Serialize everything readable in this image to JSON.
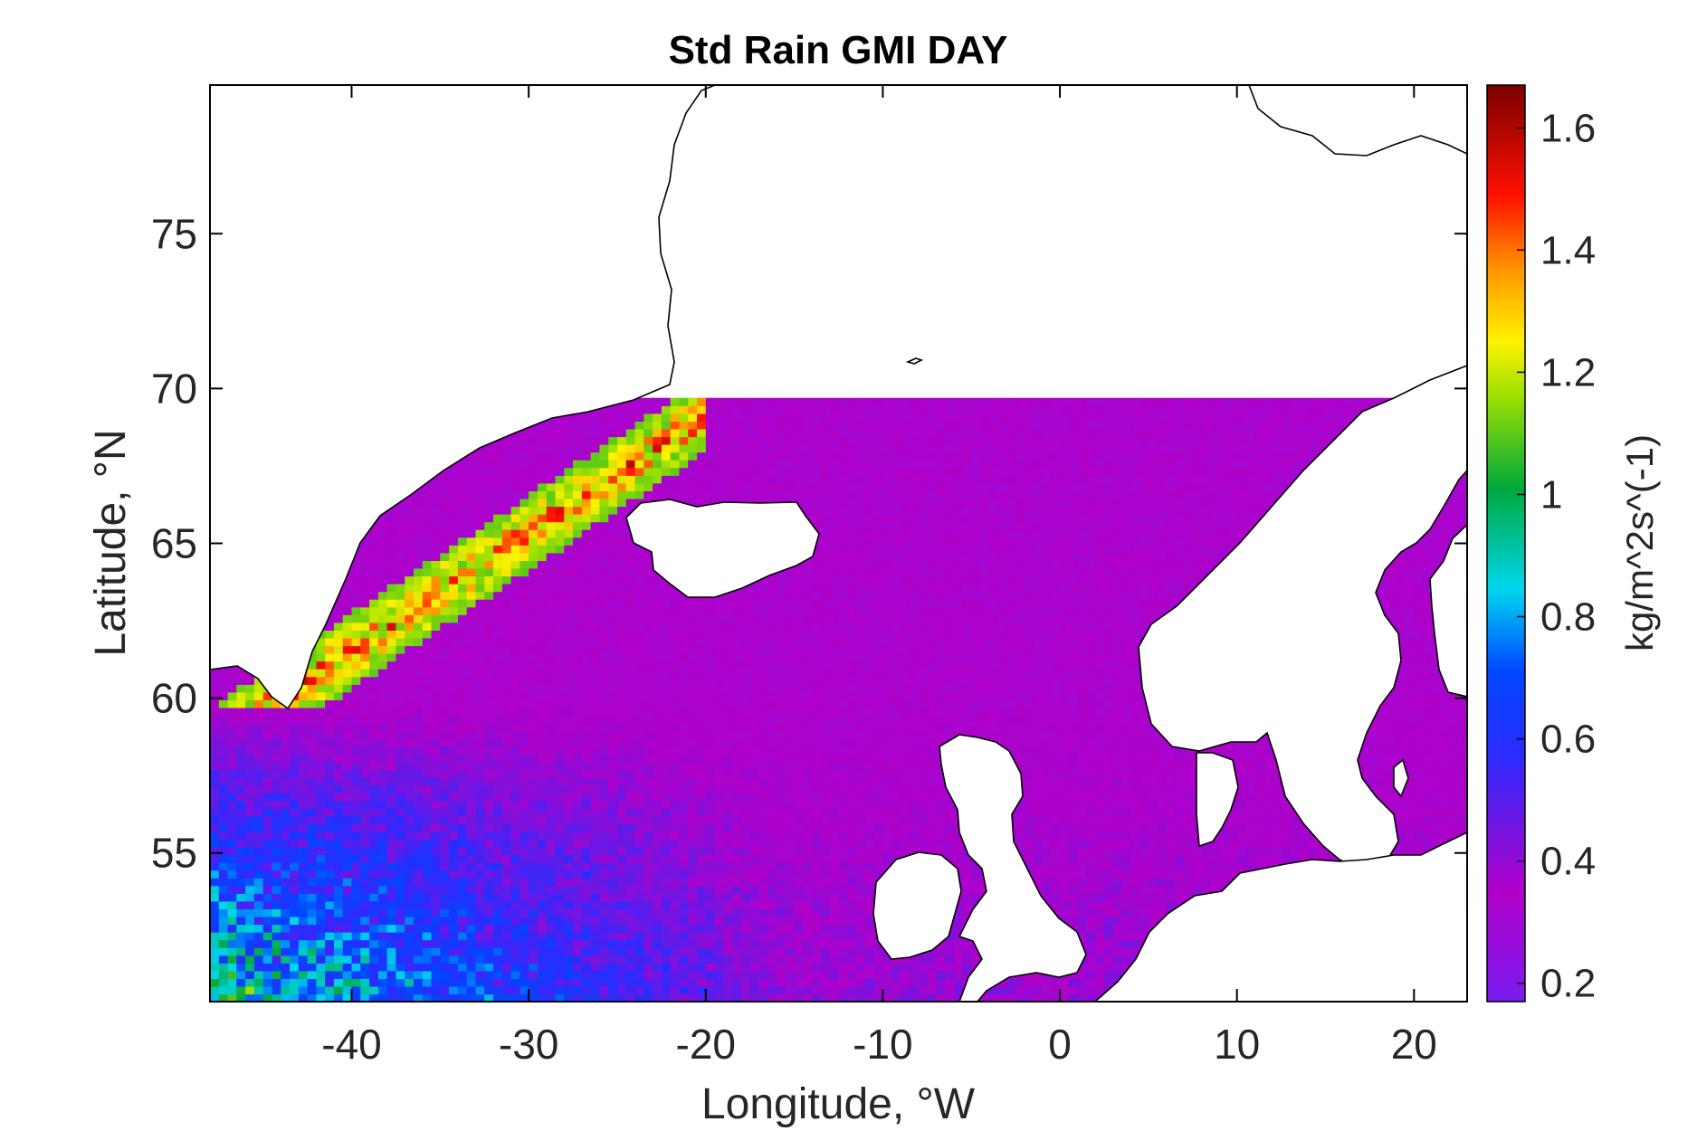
{
  "map": {
    "title": "Std Rain GMI DAY",
    "xlabel": "Longitude, °W",
    "ylabel": "Latitude, °N",
    "lon_range": [
      -48,
      23
    ],
    "lat_range": [
      50.2,
      79.8
    ],
    "x_ticks": [
      -40,
      -30,
      -20,
      -10,
      0,
      10,
      20
    ],
    "y_ticks": [
      55,
      60,
      65,
      70,
      75
    ],
    "data_lat_max": 69.5,
    "land_fill": "#ffffff",
    "coastline_color": "#000000"
  },
  "colorbar": {
    "label": "kg/m^2s^(-1)",
    "range": [
      0.17,
      1.67
    ],
    "ticks": [
      0.2,
      0.4,
      0.6,
      0.8,
      1,
      1.2,
      1.4,
      1.6
    ],
    "tick_labels": [
      "0.2",
      "0.4",
      "0.6",
      "0.8",
      "1",
      "1.2",
      "1.4",
      "1.6"
    ],
    "colors": [
      "#7a1cf0",
      "#b000c8",
      "#2a2cff",
      "#0046ff",
      "#00d6ee",
      "#00a83c",
      "#9be000",
      "#fff200",
      "#ff9400",
      "#ff1000",
      "#7a0000"
    ]
  }
}
